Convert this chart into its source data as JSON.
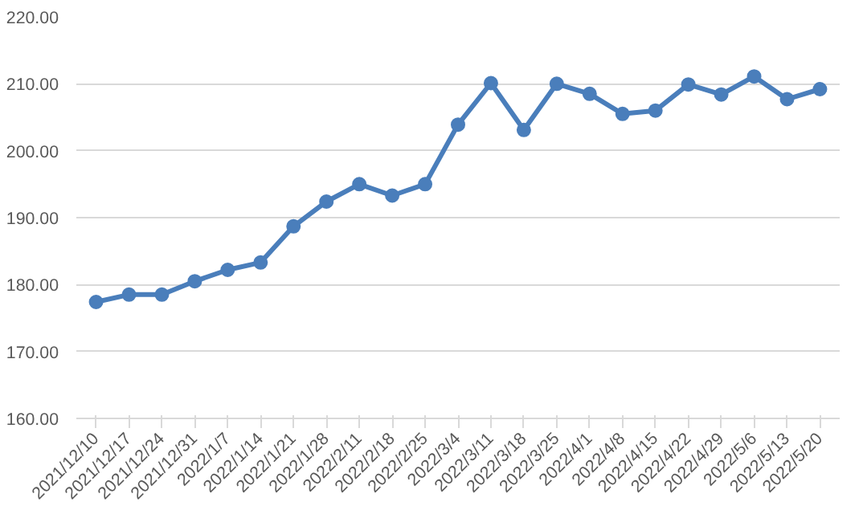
{
  "chart_data": {
    "type": "line",
    "categories": [
      "2021/12/10",
      "2021/12/17",
      "2021/12/24",
      "2021/12/31",
      "2022/1/7",
      "2022/1/14",
      "2022/1/21",
      "2022/1/28",
      "2022/2/11",
      "2022/2/18",
      "2022/2/25",
      "2022/3/4",
      "2022/3/11",
      "2022/3/18",
      "2022/3/25",
      "2022/4/1",
      "2022/4/8",
      "2022/4/15",
      "2022/4/22",
      "2022/4/29",
      "2022/5/6",
      "2022/5/13",
      "2022/5/20"
    ],
    "series": [
      {
        "color": "#4a7ebb",
        "values": [
          177.4,
          178.5,
          178.5,
          180.5,
          182.2,
          183.3,
          188.7,
          192.4,
          195.0,
          193.3,
          195.0,
          203.9,
          210.1,
          203.1,
          210.0,
          208.5,
          205.5,
          206.0,
          209.9,
          208.4,
          211.1,
          207.7,
          209.2
        ]
      }
    ],
    "ylim": [
      160,
      220
    ],
    "yticks": [
      {
        "value": 160,
        "label": "160.00"
      },
      {
        "value": 170,
        "label": "170.00"
      },
      {
        "value": 180,
        "label": "180.00"
      },
      {
        "value": 190,
        "label": "190.00"
      },
      {
        "value": 200,
        "label": "200.00"
      },
      {
        "value": 210,
        "label": "210.00"
      },
      {
        "value": 220,
        "label": "220.00"
      }
    ],
    "grid": "y",
    "marker": "circle",
    "line_style": "solid"
  }
}
